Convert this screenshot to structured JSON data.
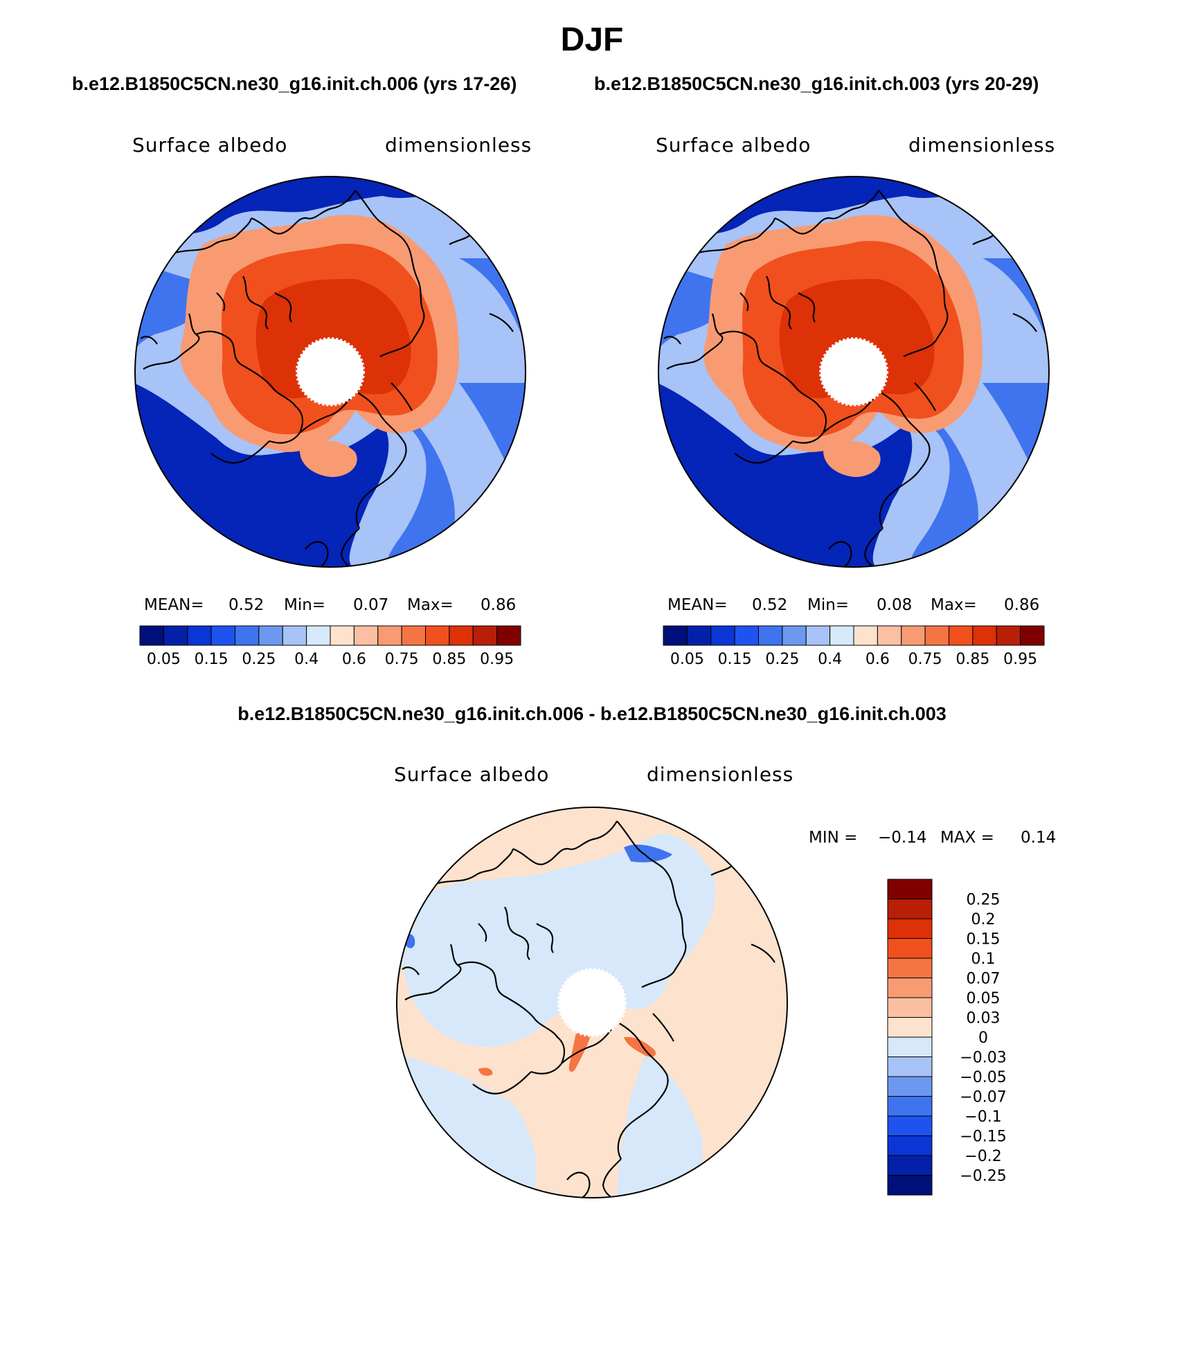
{
  "title": "DJF",
  "cases": {
    "left_label": "b.e12.B1850C5CN.ne30_g16.init.ch.006 (yrs 17-26)",
    "right_label": "b.e12.B1850C5CN.ne30_g16.init.ch.003 (yrs 20-29)",
    "diff_label": "b.e12.B1850C5CN.ne30_g16.init.ch.006 - b.e12.B1850C5CN.ne30_g16.init.ch.003"
  },
  "panels": [
    {
      "variable": "Surface albedo",
      "units": "dimensionless",
      "mean_label": "MEAN=",
      "mean_value": "0.52",
      "min_label": "Min=",
      "min_value": "0.07",
      "max_label": "Max=",
      "max_value": "0.86"
    },
    {
      "variable": "Surface albedo",
      "units": "dimensionless",
      "mean_label": "MEAN=",
      "mean_value": "0.52",
      "min_label": "Min=",
      "min_value": "0.08",
      "max_label": "Max=",
      "max_value": "0.86"
    }
  ],
  "diff_panel": {
    "variable": "Surface albedo",
    "units": "dimensionless",
    "min_label": "MIN =",
    "min_value": "−0.14",
    "max_label": "MAX =",
    "max_value": "0.14"
  },
  "colorbar_main": {
    "tick_labels": [
      "0.05",
      "0.15",
      "0.25",
      "0.4",
      "0.6",
      "0.75",
      "0.85",
      "0.95"
    ],
    "colors": [
      "#00107a",
      "#0321a8",
      "#0a36d6",
      "#1f53f0",
      "#3f74ee",
      "#6d98f0",
      "#a7c3f7",
      "#d6e8fa",
      "#fde3cd",
      "#fbc0a2",
      "#f89b73",
      "#f57443",
      "#f0501d",
      "#dd3108",
      "#b81f08",
      "#800000"
    ]
  },
  "colorbar_diff": {
    "tick_labels": [
      "0.25",
      "0.2",
      "0.15",
      "0.1",
      "0.07",
      "0.05",
      "0.03",
      "0",
      "−0.03",
      "−0.05",
      "−0.07",
      "−0.1",
      "−0.15",
      "−0.2",
      "−0.25"
    ],
    "colors": [
      "#800000",
      "#b81f08",
      "#dd3108",
      "#f0501d",
      "#f57443",
      "#f89b73",
      "#fbc0a2",
      "#fde3cd",
      "#d6e8fa",
      "#a7c3f7",
      "#6d98f0",
      "#3f74ee",
      "#1f53f0",
      "#0a36d6",
      "#0321a8",
      "#00107a"
    ]
  },
  "map_colors": {
    "ocean_low": "#0524b8",
    "ocean_mid": "#3f74ee",
    "ocean_light": "#a7c3f7",
    "ice": "#f0501d",
    "ice_dark": "#dd3108",
    "ice_edge": "#f89b73",
    "diff_neg": "#d6e8fa",
    "diff_pos": "#fde3cd",
    "diff_hot": "#f57443",
    "diff_cold": "#3f74ee"
  }
}
